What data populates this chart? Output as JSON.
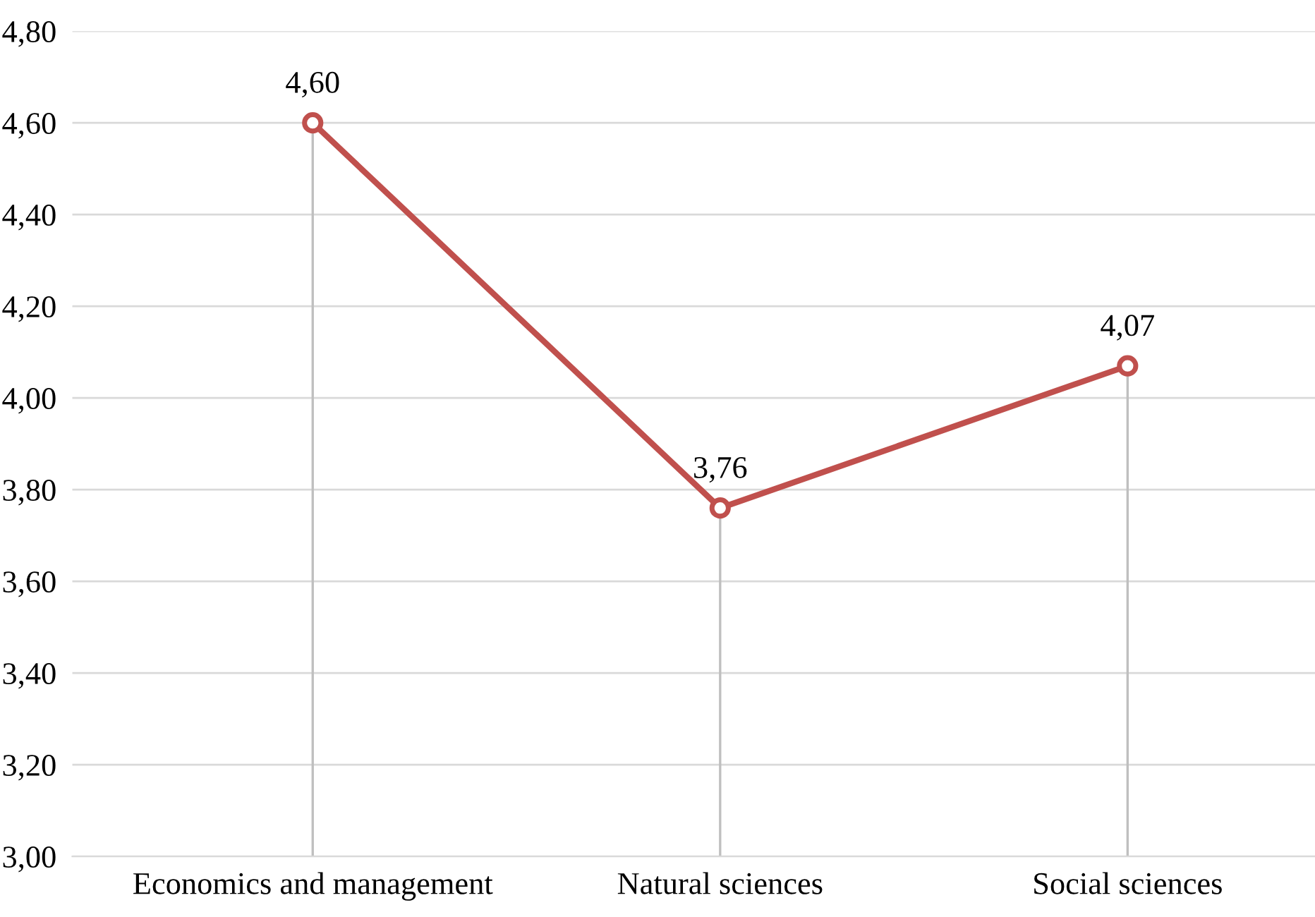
{
  "chart_data": {
    "type": "line",
    "categories": [
      "Economics and management",
      "Natural sciences",
      "Social sciences"
    ],
    "series": [
      {
        "color": "#c0504d",
        "values": [
          4.6,
          3.76,
          4.07
        ],
        "value_labels": [
          "4,60",
          "3,76",
          "4,07"
        ],
        "errors": [
          [
            3.0,
            4.6
          ],
          [
            3.0,
            3.76
          ],
          [
            3.0,
            4.07
          ]
        ]
      }
    ],
    "ylim": [
      3.0,
      4.8
    ],
    "yticks": [
      {
        "value": 3.0,
        "label": "3,00"
      },
      {
        "value": 3.2,
        "label": "3,20"
      },
      {
        "value": 3.4,
        "label": "3,40"
      },
      {
        "value": 3.6,
        "label": "3,60"
      },
      {
        "value": 3.8,
        "label": "3,80"
      },
      {
        "value": 4.0,
        "label": "4,00"
      },
      {
        "value": 4.2,
        "label": "4,20"
      },
      {
        "value": 4.4,
        "label": "4,40"
      },
      {
        "value": 4.6,
        "label": "4,60"
      },
      {
        "value": 4.8,
        "label": "4,80"
      }
    ],
    "grid": "y",
    "marker": "circle",
    "line_style": "solid",
    "legend": false
  }
}
